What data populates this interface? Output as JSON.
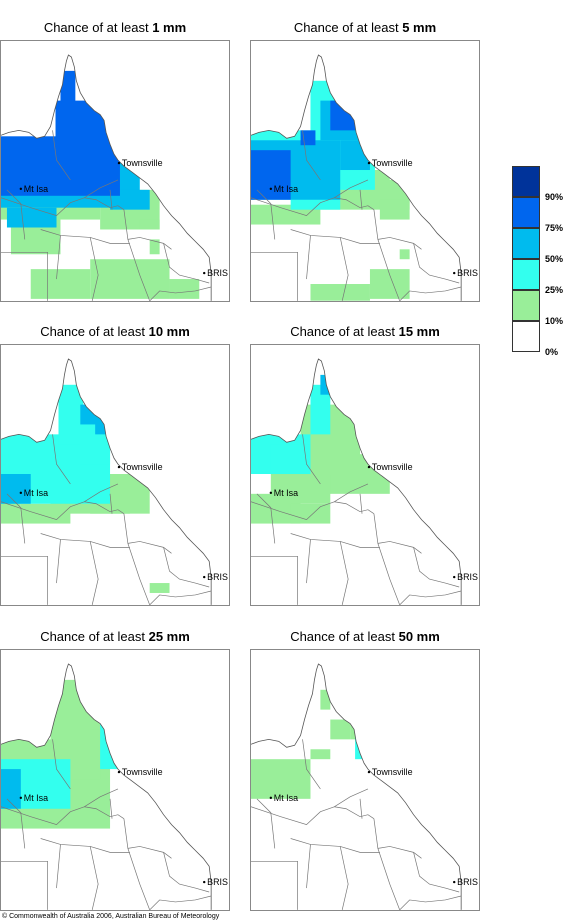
{
  "panels": [
    {
      "prefix": "Chance of at least ",
      "amount": "1 mm"
    },
    {
      "prefix": "Chance of at least ",
      "amount": "5 mm"
    },
    {
      "prefix": "Chance of at least ",
      "amount": "10 mm"
    },
    {
      "prefix": "Chance of at least ",
      "amount": "15 mm"
    },
    {
      "prefix": "Chance of at least ",
      "amount": "25 mm"
    },
    {
      "prefix": "Chance of at least ",
      "amount": "50 mm"
    }
  ],
  "places": {
    "townsville": "Townsville",
    "mt_isa": "Mt Isa",
    "bris": "BRIS"
  },
  "legend": {
    "labels": [
      "90%",
      "75%",
      "50%",
      "25%",
      "10%",
      "0%"
    ],
    "colors": [
      "#00339a",
      "#0066ee",
      "#00bbee",
      "#33ffee",
      "#99ee99",
      "#ffffff"
    ]
  },
  "copyright": "© Commonwealth of Australia 2006, Australian Bureau of Meteorology"
}
